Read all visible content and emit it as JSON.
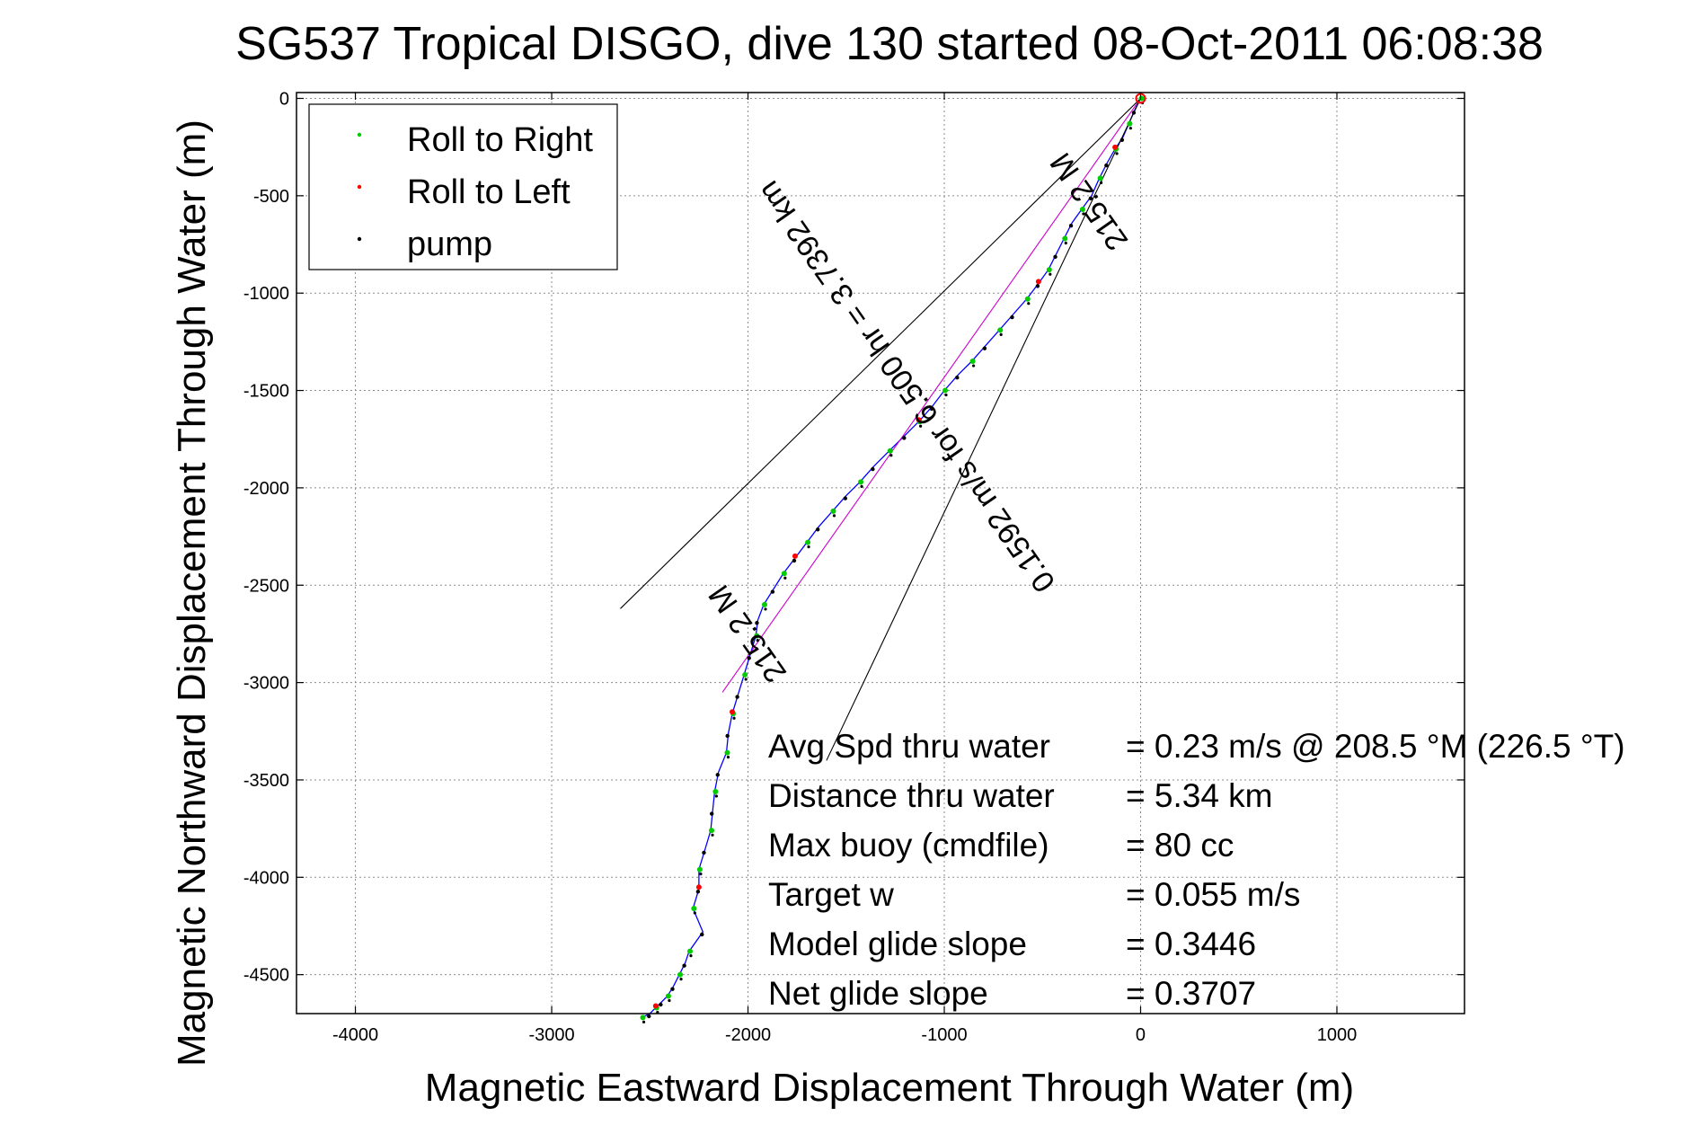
{
  "chart_data": {
    "type": "line",
    "title": "SG537 Tropical DISGO, dive 130 started 08-Oct-2011 06:08:38",
    "xlabel": "Magnetic Eastward Displacement Through Water (m)",
    "ylabel": "Magnetic Northward Displacement Through Water (m)",
    "xlim": [
      -4300,
      1650
    ],
    "ylim": [
      -4700,
      30
    ],
    "xticks": [
      -4000,
      -3000,
      -2000,
      -1000,
      0,
      1000
    ],
    "xtick_labels": [
      "-4000",
      "-3000",
      "-2000",
      "-1000",
      "0",
      "1000"
    ],
    "yticks": [
      0,
      -500,
      -1000,
      -1500,
      -2000,
      -2500,
      -3000,
      -3500,
      -4000,
      -4500
    ],
    "ytick_labels": [
      "0",
      "-500",
      "-1000",
      "-1500",
      "-2000",
      "-2500",
      "-3000",
      "-3500",
      "-4000",
      "-4500"
    ],
    "grid": true,
    "legend_position": "top-left",
    "legend": [
      {
        "label": "Roll to Right",
        "color": "#00cc00"
      },
      {
        "label": "Roll to Left",
        "color": "#ff0000"
      },
      {
        "label": "pump",
        "color": "#000000"
      }
    ],
    "series": [
      {
        "color": "#0000ff",
        "x": [
          0,
          -30,
          -60,
          -90,
          -130,
          -170,
          -210,
          -250,
          -300,
          -350,
          -390,
          -430,
          -470,
          -520,
          -580,
          -650,
          -720,
          -790,
          -860,
          -930,
          -1000,
          -1060,
          -1130,
          -1200,
          -1280,
          -1360,
          -1430,
          -1500,
          -1570,
          -1640,
          -1700,
          -1760,
          -1820,
          -1870,
          -1920,
          -1950,
          -1960,
          -1990,
          -2020,
          -2050,
          -2080,
          -2100,
          -2110,
          -2150,
          -2170,
          -2180,
          -2190,
          -2220,
          -2250,
          -2250,
          -2280,
          -2230,
          -2300,
          -2320,
          -2350,
          -2380,
          -2410,
          -2440,
          -2470,
          -2500,
          -2540
        ],
        "y": [
          0,
          -60,
          -130,
          -200,
          -260,
          -330,
          -410,
          -500,
          -570,
          -640,
          -720,
          -800,
          -880,
          -950,
          -1030,
          -1110,
          -1190,
          -1270,
          -1350,
          -1420,
          -1500,
          -1580,
          -1660,
          -1730,
          -1810,
          -1890,
          -1970,
          -2040,
          -2120,
          -2200,
          -2280,
          -2360,
          -2440,
          -2520,
          -2600,
          -2680,
          -2760,
          -2860,
          -2960,
          -3060,
          -3160,
          -3260,
          -3360,
          -3460,
          -3560,
          -3660,
          -3760,
          -3860,
          -3960,
          -4060,
          -4160,
          -4280,
          -4380,
          -4440,
          -4500,
          -4560,
          -4610,
          -4640,
          -4670,
          -4700,
          -4720
        ]
      },
      {
        "color": "#cc00cc",
        "x": [
          0,
          -2130
        ],
        "y": [
          0,
          -3050
        ]
      },
      {
        "color": "#000000",
        "x": [
          0,
          -2650
        ],
        "y": [
          0,
          -2620
        ]
      },
      {
        "color": "#000000",
        "x": [
          0,
          -1600
        ],
        "y": [
          0,
          -3400
        ]
      }
    ],
    "annotations": [
      {
        "text": "0.1592 m/s for 6.500 hr = 3.7392 km",
        "x": -1150,
        "y": -1450,
        "rotation_deg": 235
      },
      {
        "text": "215.2 M",
        "x": -1960,
        "y": -2720,
        "rotation_deg": 235
      },
      {
        "text": "215.2 M",
        "x": -220,
        "y": -500,
        "rotation_deg": 235
      }
    ],
    "stats": [
      {
        "label": "Avg Spd thru water",
        "value": "=  0.23 m/s @ 208.5 °M (226.5 °T)"
      },
      {
        "label": "Distance thru water",
        "value": "=  5.34 km"
      },
      {
        "label": "Max buoy (cmdfile)",
        "value": "= 80 cc"
      },
      {
        "label": "Target w",
        "value": "= 0.055 m/s"
      },
      {
        "label": "Model glide slope",
        "value": "= 0.3446"
      },
      {
        "label": "Net glide slope",
        "value": "= 0.3707"
      }
    ]
  }
}
